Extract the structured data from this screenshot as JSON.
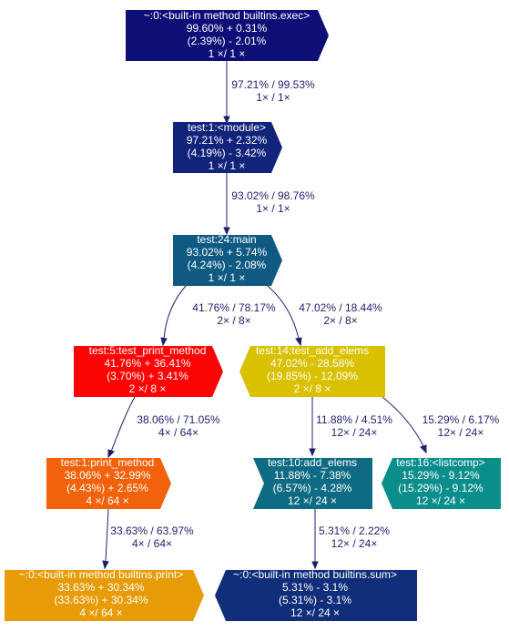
{
  "nodes": {
    "exec": {
      "lines": [
        "~:0:<built-in method builtins.exec>",
        "99.60% + 0.31%",
        "(2.39%) - 2.01%",
        "1 ×/ 1 ×"
      ],
      "color": "#0e0e77"
    },
    "module": {
      "lines": [
        "test:1:<module>",
        "97.21% + 2.32%",
        "(4.19%) - 3.42%",
        "1 ×/ 1 ×"
      ],
      "color": "#12237a"
    },
    "main": {
      "lines": [
        "test:24:main",
        "93.02% + 5.74%",
        "(4.24%) - 2.08%",
        "1 ×/ 1 ×"
      ],
      "color": "#0f5a83"
    },
    "test_print_method": {
      "lines": [
        "test:5:test_print_method",
        "41.76% + 36.41%",
        "(3.70%) + 3.41%",
        "2 ×/ 8 ×"
      ],
      "color": "#fc0505"
    },
    "test_add_elems": {
      "lines": [
        "test:14:test_add_elems",
        "47.02% - 28.58%",
        "(19.85%) - 12.09%",
        "2 ×/ 8 ×"
      ],
      "color": "#d9c100"
    },
    "print_method": {
      "lines": [
        "test:1:print_method",
        "38.06% + 32.99%",
        "(4.43%) + 2.65%",
        "4 ×/ 64 ×"
      ],
      "color": "#f1620b"
    },
    "add_elems": {
      "lines": [
        "test:10:add_elems",
        "11.88% - 7.38%",
        "(6.57%) - 4.28%",
        "12 ×/ 24 ×"
      ],
      "color": "#0e6b83"
    },
    "listcomp": {
      "lines": [
        "test:16:<listcomp>",
        "15.29% - 9.12%",
        "(15.29%) - 9.12%",
        "12 ×/ 24 ×"
      ],
      "color": "#0a8e8b"
    },
    "print": {
      "lines": [
        "~:0:<built-in method builtins.print>",
        "33.63% + 30.34%",
        "(33.63%) + 30.34%",
        "4 ×/ 64 ×"
      ],
      "color": "#e79b06"
    },
    "sum": {
      "lines": [
        "~:0:<built-in method builtins.sum>",
        "5.31% - 3.1%",
        "(5.31%) - 3.1%",
        "12 ×/ 24 ×"
      ],
      "color": "#102e7a"
    }
  },
  "edges": {
    "exec_module": [
      "97.21% / 99.53%",
      "1× / 1×"
    ],
    "module_main": [
      "93.02% / 98.76%",
      "1× / 1×"
    ],
    "main_tpm": [
      "41.76% / 78.17%",
      "2× / 8×"
    ],
    "main_tae": [
      "47.02% / 18.44%",
      "2× / 8×"
    ],
    "tpm_pm": [
      "38.06% / 71.05%",
      "4× / 64×"
    ],
    "tae_ae": [
      "11.88% / 4.51%",
      "12× / 24×"
    ],
    "tae_lc": [
      "15.29% / 6.17%",
      "12× / 24×"
    ],
    "pm_print": [
      "33.63% / 63.97%",
      "4× / 64×"
    ],
    "ae_sum": [
      "5.31% / 2.22%",
      "12× / 24×"
    ]
  }
}
